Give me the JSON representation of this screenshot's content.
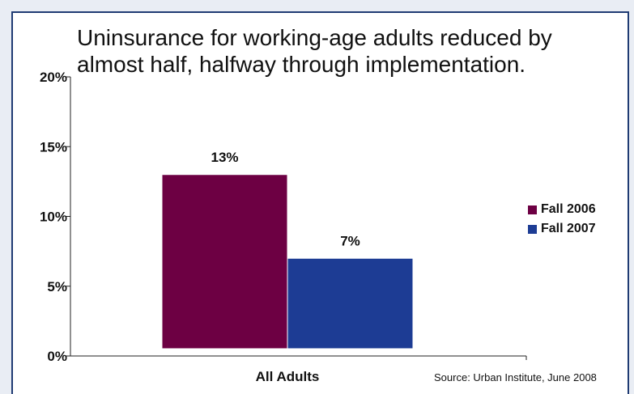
{
  "colors": {
    "fall2006": "#6d0043",
    "fall2007": "#1d3c94",
    "border": "#1f3b73"
  },
  "chart_data": {
    "type": "bar",
    "title": "Uninsurance for working-age adults reduced by almost half, halfway through implementation.",
    "categories": [
      "All Adults"
    ],
    "series": [
      {
        "name": "Fall 2006",
        "values": [
          13
        ],
        "label": "13%"
      },
      {
        "name": "Fall 2007",
        "values": [
          7
        ],
        "label": "7%"
      }
    ],
    "yticks": [
      "0%",
      "5%",
      "10%",
      "15%",
      "20%"
    ],
    "ylim": [
      0,
      20
    ],
    "grid": false,
    "legend_position": "right",
    "source": "Source: Urban Institute, June 2008"
  }
}
